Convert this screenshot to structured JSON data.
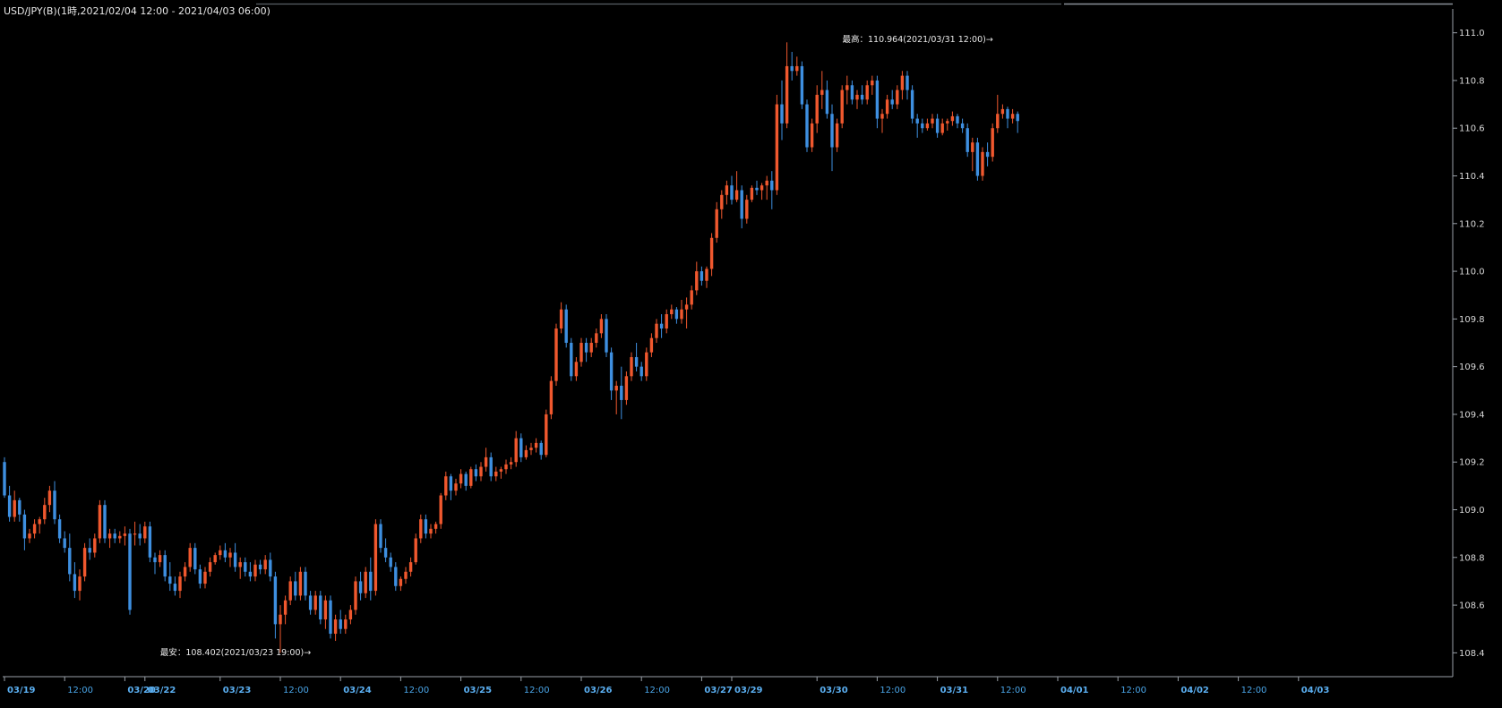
{
  "title": "USD/JPY(B)(1時,2021/02/04 12:00 - 2021/04/03 06:00)",
  "colors": {
    "background": "#000000",
    "up": "#f0582e",
    "down": "#3e8fe0",
    "axis": "#9aa0a8",
    "date_label": "#4aa8f0"
  },
  "chart_data": {
    "type": "candlestick",
    "instrument": "USD/JPY(B)",
    "interval": "1時",
    "range": "2021/02/04 12:00 - 2021/04/03 06:00",
    "ylim": [
      108.3,
      111.1
    ],
    "y_ticks": [
      {
        "value": 108.4,
        "label": "108.4"
      },
      {
        "value": 108.6,
        "label": "108.6"
      },
      {
        "value": 108.8,
        "label": "108.8"
      },
      {
        "value": 109.0,
        "label": "109.0"
      },
      {
        "value": 109.2,
        "label": "109.2"
      },
      {
        "value": 109.4,
        "label": "109.4"
      },
      {
        "value": 109.6,
        "label": "109.6"
      },
      {
        "value": 109.8,
        "label": "109.8"
      },
      {
        "value": 110.0,
        "label": "110.0"
      },
      {
        "value": 110.2,
        "label": "110.2"
      },
      {
        "value": 110.4,
        "label": "110.4"
      },
      {
        "value": 110.6,
        "label": "110.6"
      },
      {
        "value": 110.8,
        "label": "110.8"
      },
      {
        "value": 111.0,
        "label": "111.0"
      }
    ],
    "x_ticks": [
      {
        "index": 0,
        "label": "03/19",
        "kind": "date"
      },
      {
        "index": 12,
        "label": "12:00",
        "kind": "time"
      },
      {
        "index": 24,
        "label": "03/20",
        "kind": "date"
      },
      {
        "index": 28,
        "label": "03/22",
        "kind": "date"
      },
      {
        "index": 43,
        "label": "03/23",
        "kind": "date"
      },
      {
        "index": 55,
        "label": "12:00",
        "kind": "time"
      },
      {
        "index": 67,
        "label": "03/24",
        "kind": "date"
      },
      {
        "index": 79,
        "label": "12:00",
        "kind": "time"
      },
      {
        "index": 91,
        "label": "03/25",
        "kind": "date"
      },
      {
        "index": 103,
        "label": "12:00",
        "kind": "time"
      },
      {
        "index": 115,
        "label": "03/26",
        "kind": "date"
      },
      {
        "index": 127,
        "label": "12:00",
        "kind": "time"
      },
      {
        "index": 139,
        "label": "03/27",
        "kind": "date"
      },
      {
        "index": 145,
        "label": "03/29",
        "kind": "date"
      },
      {
        "index": 162,
        "label": "03/30",
        "kind": "date"
      },
      {
        "index": 174,
        "label": "12:00",
        "kind": "time"
      },
      {
        "index": 186,
        "label": "03/31",
        "kind": "date"
      },
      {
        "index": 198,
        "label": "12:00",
        "kind": "time"
      },
      {
        "index": 210,
        "label": "04/01",
        "kind": "date"
      },
      {
        "index": 222,
        "label": "12:00",
        "kind": "time"
      },
      {
        "index": 234,
        "label": "04/02",
        "kind": "date"
      },
      {
        "index": 246,
        "label": "12:00",
        "kind": "time"
      },
      {
        "index": 258,
        "label": "04/03",
        "kind": "date"
      }
    ],
    "annotations": {
      "high": {
        "label": "最高：110.964(2021/03/31 12:00)→",
        "value": 110.964,
        "index": 198
      },
      "low": {
        "label": "最安：108.402(2021/03/23 19:00)→",
        "value": 108.402,
        "index": 62
      }
    },
    "candles": [
      [
        109.2,
        109.22,
        109.05,
        109.06
      ],
      [
        109.06,
        109.1,
        108.95,
        108.97
      ],
      [
        108.97,
        109.08,
        108.95,
        109.04
      ],
      [
        109.04,
        109.05,
        108.95,
        108.98
      ],
      [
        108.98,
        109.0,
        108.83,
        108.88
      ],
      [
        108.88,
        108.92,
        108.86,
        108.9
      ],
      [
        108.9,
        108.96,
        108.88,
        108.94
      ],
      [
        108.94,
        108.97,
        108.9,
        108.96
      ],
      [
        108.96,
        109.05,
        108.94,
        109.02
      ],
      [
        109.02,
        109.1,
        108.99,
        109.08
      ],
      [
        109.08,
        109.12,
        108.94,
        108.96
      ],
      [
        108.96,
        108.98,
        108.86,
        108.88
      ],
      [
        108.88,
        108.91,
        108.82,
        108.84
      ],
      [
        108.84,
        108.9,
        108.7,
        108.73
      ],
      [
        108.73,
        108.78,
        108.63,
        108.66
      ],
      [
        108.66,
        108.75,
        108.62,
        108.72
      ],
      [
        108.72,
        108.86,
        108.7,
        108.84
      ],
      [
        108.84,
        108.88,
        108.79,
        108.82
      ],
      [
        108.82,
        108.9,
        108.8,
        108.88
      ],
      [
        108.88,
        109.04,
        108.86,
        109.02
      ],
      [
        109.02,
        109.04,
        108.86,
        108.88
      ],
      [
        108.88,
        108.92,
        108.84,
        108.9
      ],
      [
        108.9,
        108.92,
        108.86,
        108.88
      ],
      [
        108.88,
        108.91,
        108.86,
        108.89
      ],
      [
        108.89,
        108.93,
        108.85,
        108.9
      ],
      [
        108.9,
        108.92,
        108.56,
        108.58
      ],
      [
        108.9,
        108.95,
        108.85,
        108.9
      ],
      [
        108.9,
        108.94,
        108.85,
        108.88
      ],
      [
        108.88,
        108.95,
        108.86,
        108.93
      ],
      [
        108.93,
        108.95,
        108.78,
        108.8
      ],
      [
        108.8,
        108.82,
        108.73,
        108.78
      ],
      [
        108.78,
        108.83,
        108.76,
        108.81
      ],
      [
        108.81,
        108.83,
        108.7,
        108.72
      ],
      [
        108.72,
        108.78,
        108.66,
        108.69
      ],
      [
        108.69,
        108.72,
        108.64,
        108.66
      ],
      [
        108.66,
        108.74,
        108.63,
        108.72
      ],
      [
        108.72,
        108.78,
        108.7,
        108.76
      ],
      [
        108.76,
        108.86,
        108.74,
        108.84
      ],
      [
        108.84,
        108.86,
        108.73,
        108.75
      ],
      [
        108.75,
        108.77,
        108.67,
        108.69
      ],
      [
        108.69,
        108.76,
        108.67,
        108.74
      ],
      [
        108.74,
        108.8,
        108.72,
        108.78
      ],
      [
        108.78,
        108.82,
        108.77,
        108.81
      ],
      [
        108.81,
        108.85,
        108.79,
        108.83
      ],
      [
        108.83,
        108.86,
        108.78,
        108.8
      ],
      [
        108.8,
        108.84,
        108.76,
        108.82
      ],
      [
        108.82,
        108.86,
        108.74,
        108.76
      ],
      [
        108.76,
        108.8,
        108.71,
        108.78
      ],
      [
        108.78,
        108.8,
        108.72,
        108.74
      ],
      [
        108.74,
        108.78,
        108.7,
        108.72
      ],
      [
        108.72,
        108.79,
        108.7,
        108.77
      ],
      [
        108.77,
        108.79,
        108.73,
        108.75
      ],
      [
        108.75,
        108.81,
        108.73,
        108.79
      ],
      [
        108.79,
        108.82,
        108.7,
        108.72
      ],
      [
        108.72,
        108.74,
        108.46,
        108.52
      ],
      [
        108.52,
        108.6,
        108.4,
        108.56
      ],
      [
        108.56,
        108.64,
        108.52,
        108.62
      ],
      [
        108.62,
        108.72,
        108.6,
        108.7
      ],
      [
        108.7,
        108.74,
        108.62,
        108.64
      ],
      [
        108.64,
        108.76,
        108.62,
        108.74
      ],
      [
        108.74,
        108.76,
        108.62,
        108.64
      ],
      [
        108.64,
        108.66,
        108.56,
        108.58
      ],
      [
        108.58,
        108.66,
        108.56,
        108.64
      ],
      [
        108.64,
        108.66,
        108.52,
        108.54
      ],
      [
        108.54,
        108.64,
        108.5,
        108.62
      ],
      [
        108.62,
        108.64,
        108.46,
        108.48
      ],
      [
        108.48,
        108.56,
        108.45,
        108.54
      ],
      [
        108.54,
        108.58,
        108.48,
        108.5
      ],
      [
        108.5,
        108.56,
        108.48,
        108.54
      ],
      [
        108.54,
        108.6,
        108.52,
        108.58
      ],
      [
        108.58,
        108.72,
        108.56,
        108.7
      ],
      [
        108.7,
        108.74,
        108.62,
        108.65
      ],
      [
        108.65,
        108.76,
        108.63,
        108.74
      ],
      [
        108.74,
        108.8,
        108.62,
        108.66
      ],
      [
        108.66,
        108.96,
        108.64,
        108.94
      ],
      [
        108.94,
        108.96,
        108.82,
        108.84
      ],
      [
        108.84,
        108.88,
        108.78,
        108.8
      ],
      [
        108.8,
        108.82,
        108.74,
        108.76
      ],
      [
        108.76,
        108.78,
        108.66,
        108.68
      ],
      [
        108.68,
        108.72,
        108.66,
        108.71
      ],
      [
        108.71,
        108.76,
        108.69,
        108.74
      ],
      [
        108.74,
        108.8,
        108.72,
        108.78
      ],
      [
        108.78,
        108.9,
        108.77,
        108.88
      ],
      [
        108.88,
        108.98,
        108.86,
        108.96
      ],
      [
        108.96,
        108.98,
        108.88,
        108.9
      ],
      [
        108.9,
        108.94,
        108.88,
        108.92
      ],
      [
        108.92,
        108.95,
        108.9,
        108.94
      ],
      [
        108.94,
        109.07,
        108.92,
        109.06
      ],
      [
        109.06,
        109.16,
        109.04,
        109.14
      ],
      [
        109.14,
        109.15,
        109.04,
        109.08
      ],
      [
        109.08,
        109.13,
        109.06,
        109.11
      ],
      [
        109.11,
        109.17,
        109.09,
        109.15
      ],
      [
        109.15,
        109.16,
        109.08,
        109.1
      ],
      [
        109.1,
        109.18,
        109.09,
        109.17
      ],
      [
        109.17,
        109.19,
        109.12,
        109.14
      ],
      [
        109.14,
        109.2,
        109.12,
        109.18
      ],
      [
        109.18,
        109.26,
        109.16,
        109.22
      ],
      [
        109.22,
        109.24,
        109.12,
        109.14
      ],
      [
        109.14,
        109.18,
        109.12,
        109.16
      ],
      [
        109.16,
        109.18,
        109.13,
        109.17
      ],
      [
        109.17,
        109.21,
        109.15,
        109.19
      ],
      [
        109.19,
        109.22,
        109.17,
        109.2
      ],
      [
        109.2,
        109.33,
        109.18,
        109.3
      ],
      [
        109.3,
        109.32,
        109.2,
        109.22
      ],
      [
        109.22,
        109.27,
        109.21,
        109.25
      ],
      [
        109.25,
        109.28,
        109.23,
        109.26
      ],
      [
        109.26,
        109.3,
        109.24,
        109.28
      ],
      [
        109.28,
        109.29,
        109.21,
        109.23
      ],
      [
        109.23,
        109.42,
        109.22,
        109.4
      ],
      [
        109.4,
        109.56,
        109.38,
        109.54
      ],
      [
        109.54,
        109.78,
        109.52,
        109.76
      ],
      [
        109.76,
        109.87,
        109.74,
        109.84
      ],
      [
        109.84,
        109.86,
        109.68,
        109.7
      ],
      [
        109.7,
        109.72,
        109.54,
        109.56
      ],
      [
        109.56,
        109.64,
        109.54,
        109.62
      ],
      [
        109.62,
        109.72,
        109.6,
        109.7
      ],
      [
        109.7,
        109.72,
        109.62,
        109.66
      ],
      [
        109.66,
        109.72,
        109.64,
        109.7
      ],
      [
        109.7,
        109.76,
        109.68,
        109.74
      ],
      [
        109.74,
        109.82,
        109.72,
        109.8
      ],
      [
        109.8,
        109.82,
        109.64,
        109.66
      ],
      [
        109.66,
        109.68,
        109.46,
        109.5
      ],
      [
        109.5,
        109.54,
        109.4,
        109.52
      ],
      [
        109.52,
        109.6,
        109.38,
        109.46
      ],
      [
        109.46,
        109.58,
        109.44,
        109.56
      ],
      [
        109.56,
        109.66,
        109.54,
        109.64
      ],
      [
        109.64,
        109.7,
        109.58,
        109.6
      ],
      [
        109.6,
        109.62,
        109.54,
        109.56
      ],
      [
        109.56,
        109.68,
        109.54,
        109.66
      ],
      [
        109.66,
        109.74,
        109.64,
        109.72
      ],
      [
        109.72,
        109.8,
        109.7,
        109.78
      ],
      [
        109.78,
        109.82,
        109.72,
        109.76
      ],
      [
        109.76,
        109.84,
        109.74,
        109.82
      ],
      [
        109.82,
        109.86,
        109.8,
        109.84
      ],
      [
        109.84,
        109.85,
        109.78,
        109.8
      ],
      [
        109.8,
        109.88,
        109.78,
        109.84
      ],
      [
        109.84,
        109.89,
        109.76,
        109.86
      ],
      [
        109.86,
        109.94,
        109.84,
        109.92
      ],
      [
        109.92,
        110.04,
        109.9,
        110.0
      ],
      [
        110.0,
        110.02,
        109.94,
        109.96
      ],
      [
        109.96,
        110.02,
        109.93,
        110.01
      ],
      [
        110.01,
        110.16,
        109.98,
        110.14
      ],
      [
        110.14,
        110.29,
        110.12,
        110.26
      ],
      [
        110.26,
        110.34,
        110.22,
        110.32
      ],
      [
        110.32,
        110.38,
        110.28,
        110.36
      ],
      [
        110.36,
        110.4,
        110.28,
        110.3
      ],
      [
        110.3,
        110.42,
        110.29,
        110.34
      ],
      [
        110.34,
        110.36,
        110.18,
        110.22
      ],
      [
        110.22,
        110.32,
        110.2,
        110.3
      ],
      [
        110.3,
        110.36,
        110.29,
        110.35
      ],
      [
        110.35,
        110.38,
        110.32,
        110.34
      ],
      [
        110.34,
        110.37,
        110.3,
        110.36
      ],
      [
        110.36,
        110.4,
        110.3,
        110.38
      ],
      [
        110.38,
        110.42,
        110.26,
        110.34
      ],
      [
        110.34,
        110.74,
        110.32,
        110.7
      ],
      [
        110.7,
        110.8,
        110.55,
        110.62
      ],
      [
        110.62,
        110.96,
        110.6,
        110.86
      ],
      [
        110.86,
        110.92,
        110.8,
        110.84
      ],
      [
        110.84,
        110.9,
        110.82,
        110.86
      ],
      [
        110.86,
        110.88,
        110.68,
        110.7
      ],
      [
        110.7,
        110.72,
        110.5,
        110.52
      ],
      [
        110.52,
        110.64,
        110.5,
        110.62
      ],
      [
        110.62,
        110.78,
        110.58,
        110.74
      ],
      [
        110.74,
        110.84,
        110.68,
        110.76
      ],
      [
        110.76,
        110.8,
        110.64,
        110.66
      ],
      [
        110.66,
        110.7,
        110.42,
        110.52
      ],
      [
        110.52,
        110.64,
        110.5,
        110.62
      ],
      [
        110.62,
        110.78,
        110.6,
        110.76
      ],
      [
        110.76,
        110.82,
        110.7,
        110.78
      ],
      [
        110.78,
        110.8,
        110.7,
        110.72
      ],
      [
        110.72,
        110.76,
        110.68,
        110.74
      ],
      [
        110.74,
        110.78,
        110.7,
        110.72
      ],
      [
        110.72,
        110.8,
        110.7,
        110.78
      ],
      [
        110.78,
        110.82,
        110.74,
        110.8
      ],
      [
        110.8,
        110.82,
        110.6,
        110.64
      ],
      [
        110.64,
        110.68,
        110.58,
        110.66
      ],
      [
        110.66,
        110.74,
        110.64,
        110.72
      ],
      [
        110.72,
        110.76,
        110.68,
        110.7
      ],
      [
        110.7,
        110.78,
        110.68,
        110.76
      ],
      [
        110.76,
        110.84,
        110.72,
        110.82
      ],
      [
        110.82,
        110.84,
        110.72,
        110.76
      ],
      [
        110.76,
        110.78,
        110.62,
        110.64
      ],
      [
        110.64,
        110.66,
        110.56,
        110.62
      ],
      [
        110.62,
        110.64,
        110.58,
        110.6
      ],
      [
        110.6,
        110.64,
        110.59,
        110.62
      ],
      [
        110.62,
        110.66,
        110.6,
        110.64
      ],
      [
        110.64,
        110.66,
        110.56,
        110.58
      ],
      [
        110.58,
        110.64,
        110.57,
        110.62
      ],
      [
        110.62,
        110.64,
        110.59,
        110.63
      ],
      [
        110.63,
        110.67,
        110.61,
        110.65
      ],
      [
        110.65,
        110.66,
        110.6,
        110.62
      ],
      [
        110.62,
        110.64,
        110.58,
        110.6
      ],
      [
        110.6,
        110.62,
        110.48,
        110.5
      ],
      [
        110.5,
        110.56,
        110.42,
        110.54
      ],
      [
        110.54,
        110.56,
        110.38,
        110.4
      ],
      [
        110.4,
        110.52,
        110.38,
        110.5
      ],
      [
        110.5,
        110.54,
        110.44,
        110.48
      ],
      [
        110.48,
        110.62,
        110.46,
        110.6
      ],
      [
        110.6,
        110.74,
        110.58,
        110.66
      ],
      [
        110.66,
        110.7,
        110.64,
        110.68
      ],
      [
        110.68,
        110.69,
        110.6,
        110.64
      ],
      [
        110.64,
        110.68,
        110.62,
        110.66
      ],
      [
        110.66,
        110.67,
        110.58,
        110.63
      ]
    ]
  }
}
